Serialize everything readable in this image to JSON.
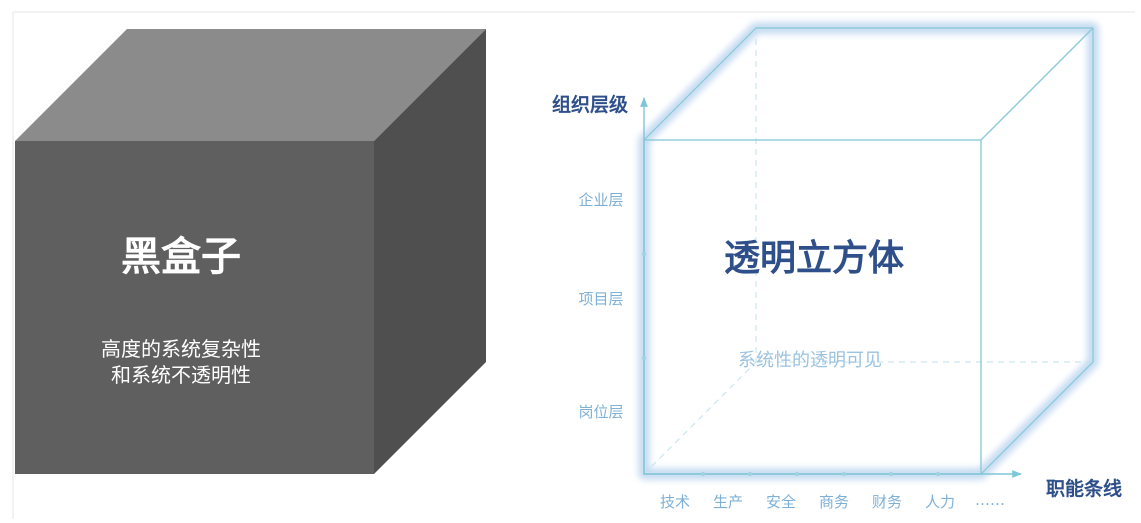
{
  "black_box": {
    "title": "黑盒子",
    "subtitle_line1": "高度的系统复杂性",
    "subtitle_line2": "和系统不透明性"
  },
  "transparent_cube": {
    "title": "透明立方体",
    "subtitle": "系统性的透明可见"
  },
  "y_axis": {
    "label": "组织层级",
    "levels": [
      "企业层",
      "项目层",
      "岗位层"
    ]
  },
  "x_axis": {
    "label": "职能条线",
    "functions": [
      "技术",
      "生产",
      "安全",
      "商务",
      "财务",
      "人力",
      "……"
    ]
  },
  "colors": {
    "black_front": "#5f5f5f",
    "black_top": "#8b8b8b",
    "black_side": "#4f4f4f",
    "cube_line": "#8ccbd9",
    "cube_glow": "#bcd6ef",
    "axis_line": "#7fc6d8",
    "title_blue": "#2f4f8a",
    "label_blue": "#7fb0d6",
    "subtitle_blue": "#9cc3e0"
  }
}
